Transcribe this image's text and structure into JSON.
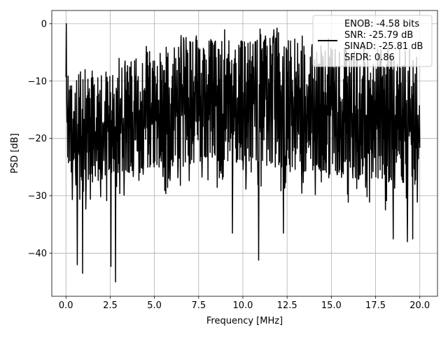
{
  "chart_data": {
    "type": "line",
    "xlabel": "Frequency [MHz]",
    "ylabel": "PSD [dB]",
    "xlim": [
      -0.8,
      21.0
    ],
    "ylim": [
      -47.5,
      2.3
    ],
    "x_ticks": [
      0.0,
      2.5,
      5.0,
      7.5,
      10.0,
      12.5,
      15.0,
      17.5,
      20.0
    ],
    "x_tick_labels": [
      "0.0",
      "2.5",
      "5.0",
      "7.5",
      "10.0",
      "12.5",
      "15.0",
      "17.5",
      "20.0"
    ],
    "y_ticks": [
      0,
      -10,
      -20,
      -30,
      -40
    ],
    "y_tick_labels": [
      "0",
      "−10",
      "−20",
      "−30",
      "−40"
    ],
    "grid": true,
    "legend_position": "top-right",
    "legend_entries": [
      "ENOB: -4.58 bits",
      "SNR: -25.79 dB",
      "SINAD: -25.81 dB",
      "SFDR: 0.86"
    ],
    "series": [
      {
        "color": "#000000",
        "x_range": [
          0.0,
          20.0
        ],
        "num_points": 1000,
        "peak": {
          "x": 0.02,
          "y": 0.0
        },
        "notable_minima": [
          {
            "x": 0.65,
            "y": -42.0
          },
          {
            "x": 0.95,
            "y": -43.5
          },
          {
            "x": 2.55,
            "y": -42.3
          },
          {
            "x": 2.8,
            "y": -45.0
          },
          {
            "x": 9.4,
            "y": -36.5
          },
          {
            "x": 10.9,
            "y": -41.2
          },
          {
            "x": 12.3,
            "y": -36.5
          },
          {
            "x": 18.5,
            "y": -37.5
          },
          {
            "x": 19.3,
            "y": -38.0
          },
          {
            "x": 19.6,
            "y": -37.5
          }
        ],
        "upper_envelope": [
          [
            0.0,
            -8
          ],
          [
            0.5,
            -10
          ],
          [
            1.5,
            -9
          ],
          [
            2.5,
            -9
          ],
          [
            3.5,
            -7
          ],
          [
            4.5,
            -5
          ],
          [
            5.5,
            -4.5
          ],
          [
            6.5,
            -3.5
          ],
          [
            7.5,
            -3
          ],
          [
            8.5,
            -3
          ],
          [
            9.5,
            -3
          ],
          [
            10.5,
            -3
          ],
          [
            11.5,
            -2.5
          ],
          [
            12.5,
            -2.5
          ],
          [
            13.5,
            -4
          ],
          [
            14.5,
            -4.5
          ],
          [
            15.5,
            -4
          ],
          [
            16.5,
            -5
          ],
          [
            17.5,
            -5
          ],
          [
            18.5,
            -6
          ],
          [
            19.5,
            -6
          ],
          [
            20.0,
            -7
          ]
        ],
        "lower_envelope": [
          [
            0.0,
            -24
          ],
          [
            0.5,
            -28
          ],
          [
            1.5,
            -28
          ],
          [
            2.5,
            -26
          ],
          [
            3.5,
            -26
          ],
          [
            4.5,
            -25
          ],
          [
            5.5,
            -25
          ],
          [
            6.5,
            -25
          ],
          [
            7.5,
            -24
          ],
          [
            8.5,
            -24
          ],
          [
            9.5,
            -24
          ],
          [
            10.5,
            -24
          ],
          [
            11.5,
            -25
          ],
          [
            12.5,
            -25
          ],
          [
            13.5,
            -26
          ],
          [
            14.5,
            -26
          ],
          [
            15.5,
            -26
          ],
          [
            16.5,
            -27
          ],
          [
            17.5,
            -27
          ],
          [
            18.5,
            -28
          ],
          [
            19.5,
            -28
          ],
          [
            20.0,
            -28
          ]
        ]
      }
    ]
  }
}
